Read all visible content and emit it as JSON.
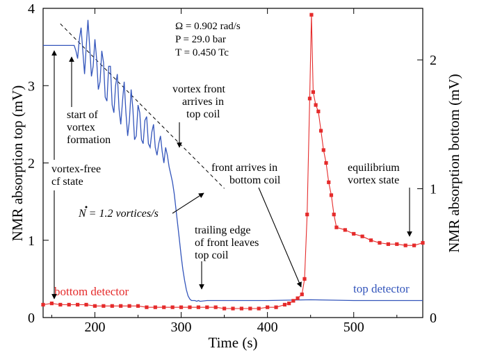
{
  "chart_data": {
    "type": "line",
    "xlabel": "Time  (s)",
    "ylabel_left": "NMR absorption top  (mV)",
    "ylabel_right": "NMR absorption bottom  (mV)",
    "xlim": [
      140,
      580
    ],
    "ylim_left": [
      0,
      4
    ],
    "ylim_right": [
      0,
      2.4
    ],
    "xticks": [
      "200",
      "300",
      "400",
      "500"
    ],
    "yticks_left": [
      "0",
      "1",
      "2",
      "3",
      "4"
    ],
    "yticks_right": [
      "0",
      "1",
      "2"
    ],
    "params": {
      "omega": "Ω = 0.902 rad/s",
      "pressure": "P = 29.0 bar",
      "temperature": "T = 0.450 Tc"
    },
    "series": [
      {
        "name": "top detector",
        "axis": "left",
        "color": "#3355bb",
        "x": [
          140,
          176,
          178,
          180,
          182,
          184,
          186,
          188,
          190,
          192,
          194,
          196,
          198,
          200,
          202,
          204,
          206,
          208,
          210,
          212,
          214,
          216,
          218,
          220,
          222,
          224,
          226,
          228,
          230,
          232,
          234,
          236,
          238,
          240,
          242,
          244,
          246,
          248,
          250,
          252,
          254,
          256,
          258,
          260,
          262,
          264,
          266,
          268,
          270,
          272,
          274,
          276,
          278,
          280,
          282,
          284,
          286,
          288,
          290,
          292,
          294,
          296,
          298,
          300,
          302,
          304,
          306,
          308,
          310,
          312,
          314,
          316,
          318,
          320,
          322,
          330,
          350,
          400,
          450,
          500,
          550,
          580
        ],
        "y": [
          3.52,
          3.52,
          3.45,
          3.35,
          3.6,
          3.75,
          3.45,
          3.15,
          3.5,
          3.85,
          3.5,
          3.12,
          3.25,
          3.6,
          3.35,
          2.95,
          3.05,
          3.45,
          3.3,
          2.85,
          2.8,
          3.25,
          3.25,
          2.75,
          2.65,
          3.0,
          3.15,
          2.7,
          2.5,
          2.8,
          3.05,
          2.65,
          2.35,
          2.55,
          2.95,
          2.7,
          2.3,
          2.35,
          2.75,
          2.65,
          2.3,
          2.25,
          2.55,
          2.6,
          2.25,
          2.2,
          2.4,
          2.5,
          2.2,
          2.1,
          2.25,
          2.35,
          2.15,
          2.0,
          2.2,
          2.1,
          1.95,
          1.85,
          1.75,
          1.6,
          1.4,
          1.2,
          1.0,
          0.8,
          0.62,
          0.48,
          0.36,
          0.28,
          0.24,
          0.22,
          0.22,
          0.22,
          0.21,
          0.22,
          0.21,
          0.22,
          0.22,
          0.22,
          0.23,
          0.22,
          0.22,
          0.22
        ]
      },
      {
        "name": "bottom detector",
        "axis": "right",
        "color": "#e52b2b",
        "x": [
          140,
          150,
          160,
          170,
          180,
          190,
          200,
          210,
          220,
          230,
          240,
          250,
          260,
          270,
          280,
          290,
          300,
          310,
          320,
          330,
          340,
          350,
          360,
          370,
          380,
          390,
          400,
          410,
          420,
          425,
          430,
          435,
          440,
          443,
          446,
          449,
          451,
          453,
          456,
          459,
          462,
          465,
          468,
          471,
          474,
          477,
          480,
          490,
          500,
          510,
          520,
          530,
          540,
          550,
          560,
          570,
          580
        ],
        "y": [
          0.1,
          0.11,
          0.1,
          0.1,
          0.1,
          0.1,
          0.09,
          0.09,
          0.09,
          0.09,
          0.09,
          0.09,
          0.08,
          0.08,
          0.08,
          0.08,
          0.08,
          0.08,
          0.08,
          0.08,
          0.08,
          0.07,
          0.07,
          0.07,
          0.07,
          0.07,
          0.08,
          0.08,
          0.1,
          0.11,
          0.13,
          0.15,
          0.18,
          0.3,
          0.8,
          1.7,
          2.35,
          1.75,
          1.65,
          1.6,
          1.45,
          1.3,
          1.2,
          1.05,
          0.95,
          0.8,
          0.7,
          0.68,
          0.65,
          0.63,
          0.6,
          0.58,
          0.57,
          0.57,
          0.56,
          0.56,
          0.58
        ]
      }
    ],
    "fit_line": {
      "x": [
        160,
        350
      ],
      "y": [
        3.8,
        1.67
      ],
      "style": "dashed"
    },
    "annotations": {
      "start_formation": [
        "start of",
        "vortex",
        "formation"
      ],
      "vortex_front_top": [
        "vortex front",
        "arrives in",
        "top coil"
      ],
      "vortex_free": [
        "vortex-free",
        "cf state"
      ],
      "rate_prefix": "N = 1.2 vortices/s",
      "trailing_edge": [
        "trailing edge",
        "of front leaves",
        "top coil"
      ],
      "front_bottom": [
        "front arrives in",
        "bottom coil"
      ],
      "equilibrium": [
        "equilibrium",
        "vortex state"
      ],
      "bottom_label": "bottom detector",
      "top_label": "top detector"
    }
  }
}
